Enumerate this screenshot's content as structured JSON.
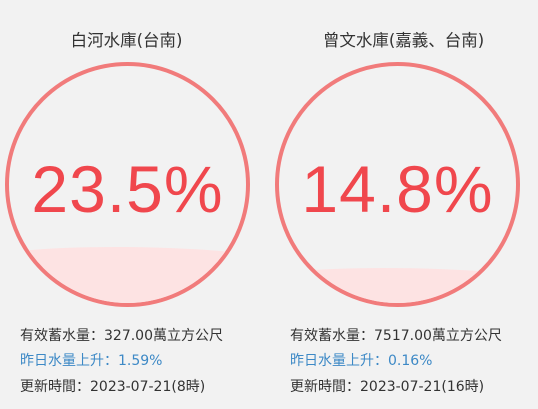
{
  "reservoirs": [
    {
      "name": "白河水庫(台南)",
      "percentage": "23.5%",
      "percentage_value": 23.5,
      "storage": "有效蓄水量：327.00萬立方公尺",
      "change": "昨日水量上升：1.59%",
      "updated": "更新時間：2023-07-21(8時)"
    },
    {
      "name": "曾文水庫(嘉義、台南)",
      "percentage": "14.8%",
      "percentage_value": 14.8,
      "storage": "有效蓄水量：7517.00萬立方公尺",
      "change": "昨日水量上升：0.16%",
      "updated": "更新時間：2023-07-21(16時)"
    }
  ],
  "colors": {
    "gauge_ring": "#f17b7b",
    "gauge_text": "#f0474d",
    "water_fill": "#fde3e3",
    "change_text": "#3d89c6",
    "background": "#f2f2f2"
  }
}
